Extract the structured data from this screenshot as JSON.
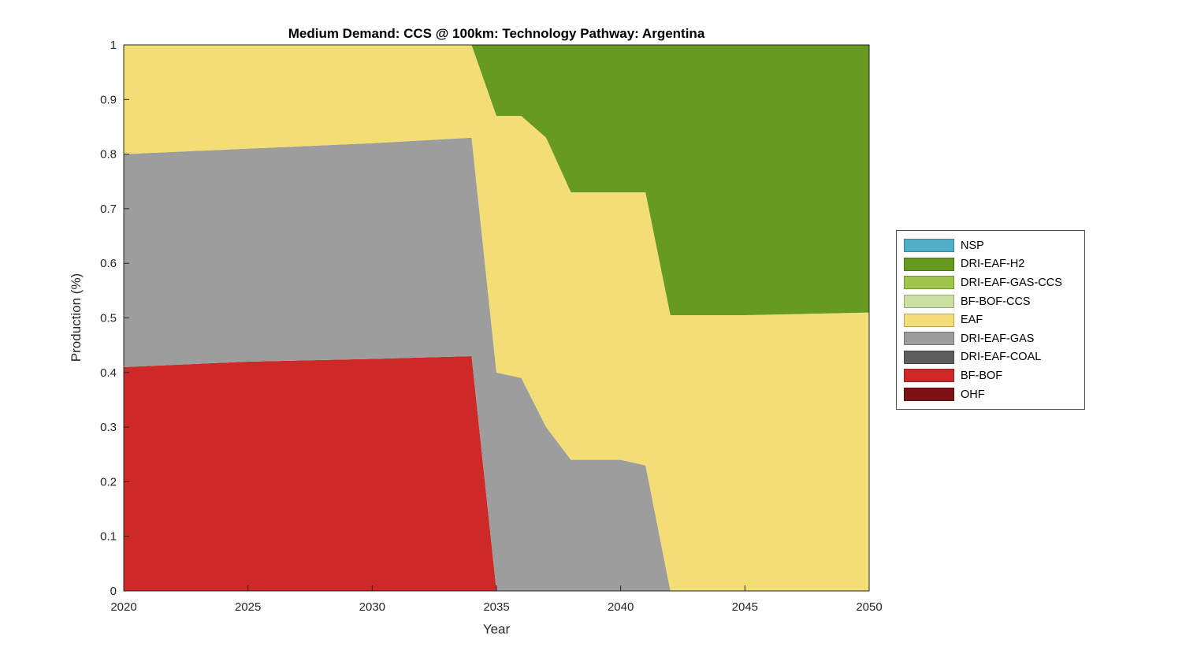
{
  "chart_data": {
    "type": "area",
    "stacked": true,
    "title": "Medium Demand: CCS @ 100km: Technology Pathway: Argentina",
    "xlabel": "Year",
    "ylabel": "Production (%)",
    "xlim": [
      2020,
      2050
    ],
    "ylim": [
      0,
      1
    ],
    "xticks": [
      2020,
      2025,
      2030,
      2035,
      2040,
      2045,
      2050
    ],
    "yticks": [
      0,
      0.1,
      0.2,
      0.3,
      0.4,
      0.5,
      0.6,
      0.7,
      0.8,
      0.9,
      1
    ],
    "ytick_labels": [
      "0",
      "0.1",
      "0.2",
      "0.3",
      "0.4",
      "0.5",
      "0.6",
      "0.7",
      "0.8",
      "0.9",
      "1"
    ],
    "x": [
      2020,
      2025,
      2030,
      2034,
      2035,
      2036,
      2037,
      2038,
      2040,
      2041,
      2042,
      2043,
      2045,
      2050
    ],
    "series": [
      {
        "name": "OHF",
        "color": "#7c1113",
        "values": [
          0,
          0,
          0,
          0,
          0,
          0,
          0,
          0,
          0,
          0,
          0,
          0,
          0,
          0
        ]
      },
      {
        "name": "BF-BOF",
        "color": "#cd2a27",
        "values": [
          0.41,
          0.42,
          0.425,
          0.43,
          0,
          0,
          0,
          0,
          0,
          0,
          0,
          0,
          0,
          0
        ]
      },
      {
        "name": "DRI-EAF-COAL",
        "color": "#5e5e5e",
        "values": [
          0,
          0,
          0,
          0,
          0,
          0,
          0,
          0,
          0,
          0,
          0,
          0,
          0,
          0
        ]
      },
      {
        "name": "DRI-EAF-GAS",
        "color": "#9d9d9d",
        "values": [
          0.39,
          0.39,
          0.395,
          0.4,
          0.4,
          0.39,
          0.3,
          0.24,
          0.24,
          0.23,
          0,
          0,
          0,
          0
        ]
      },
      {
        "name": "EAF",
        "color": "#f3de76",
        "values": [
          0.2,
          0.19,
          0.18,
          0.17,
          0.47,
          0.48,
          0.53,
          0.49,
          0.49,
          0.5,
          0.505,
          0.505,
          0.505,
          0.51
        ]
      },
      {
        "name": "BF-BOF-CCS",
        "color": "#cadfa2",
        "values": [
          0,
          0,
          0,
          0,
          0,
          0,
          0,
          0,
          0,
          0,
          0,
          0,
          0,
          0
        ]
      },
      {
        "name": "DRI-EAF-GAS-CCS",
        "color": "#9fc54a",
        "values": [
          0,
          0,
          0,
          0,
          0,
          0,
          0,
          0,
          0,
          0,
          0,
          0,
          0,
          0
        ]
      },
      {
        "name": "DRI-EAF-H2",
        "color": "#679a20",
        "values": [
          0,
          0,
          0,
          0,
          0.13,
          0.13,
          0.17,
          0.27,
          0.27,
          0.27,
          0.495,
          0.495,
          0.495,
          0.49
        ]
      },
      {
        "name": "NSP",
        "color": "#4faec8",
        "values": [
          0,
          0,
          0,
          0,
          0,
          0,
          0,
          0,
          0,
          0,
          0,
          0,
          0,
          0
        ]
      }
    ],
    "legend": {
      "position": "right-outside",
      "entries": [
        "NSP",
        "DRI-EAF-H2",
        "DRI-EAF-GAS-CCS",
        "BF-BOF-CCS",
        "EAF",
        "DRI-EAF-GAS",
        "DRI-EAF-COAL",
        "BF-BOF",
        "OHF"
      ]
    }
  }
}
